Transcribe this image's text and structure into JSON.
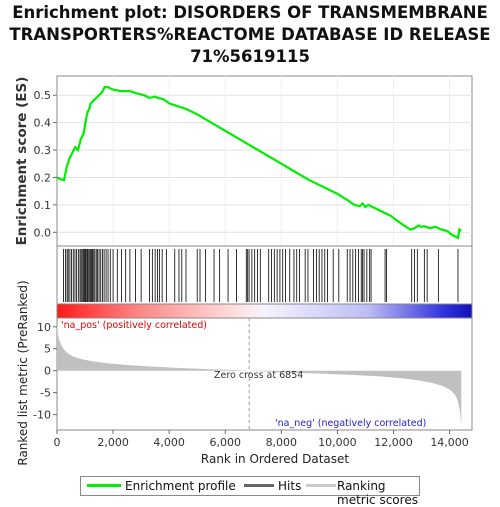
{
  "title": "Enrichment plot: DISORDERS OF TRANSMEMBRANE TRANSPORTERS%REACTOME DATABASE ID RELEASE 71%5619115",
  "title_lines": [
    "Enrichment plot: DISORDERS OF TRANSMEMBRANE",
    "TRANSPORTERS%REACTOME DATABASE ID RELEASE",
    "71%5619115"
  ],
  "colors": {
    "es_line": "#00ee00",
    "hits": "#000000",
    "metric": "#c0c0c0",
    "pos_label": "#dd0000",
    "neg_label": "#2222cc",
    "zero_cross": "#999999"
  },
  "chart_data": [
    {
      "type": "line",
      "name": "enrichment-profile",
      "ylabel": "Enrichment score (ES)",
      "xlim": [
        0,
        14800
      ],
      "ylim": [
        -0.05,
        0.57
      ],
      "yticks": [
        0.0,
        0.1,
        0.2,
        0.3,
        0.4,
        0.5
      ],
      "ytick_labels": [
        "0.0",
        "0.1",
        "0.2",
        "0.3",
        "0.4",
        "0.5"
      ],
      "grid": true,
      "series": [
        {
          "name": "Enrichment profile",
          "x": [
            0,
            100,
            250,
            350,
            450,
            550,
            650,
            750,
            850,
            950,
            1000,
            1050,
            1100,
            1150,
            1200,
            1300,
            1400,
            1500,
            1600,
            1700,
            1800,
            2000,
            2300,
            2600,
            2900,
            3100,
            3300,
            3500,
            3600,
            3800,
            4000,
            4300,
            4600,
            5000,
            5500,
            6000,
            6500,
            7000,
            7500,
            8000,
            8500,
            9000,
            9500,
            10000,
            10400,
            10600,
            10800,
            10900,
            11000,
            11100,
            11300,
            11500,
            11700,
            11900,
            12100,
            12300,
            12600,
            12750,
            12900,
            13000,
            13100,
            13300,
            13500,
            13700,
            13900,
            14100,
            14300,
            14350,
            14420
          ],
          "y": [
            0.2,
            0.195,
            0.19,
            0.24,
            0.27,
            0.29,
            0.31,
            0.3,
            0.34,
            0.36,
            0.39,
            0.42,
            0.44,
            0.45,
            0.47,
            0.48,
            0.49,
            0.5,
            0.51,
            0.53,
            0.53,
            0.52,
            0.515,
            0.515,
            0.505,
            0.5,
            0.49,
            0.495,
            0.49,
            0.485,
            0.47,
            0.46,
            0.45,
            0.43,
            0.4,
            0.37,
            0.34,
            0.31,
            0.28,
            0.25,
            0.22,
            0.19,
            0.165,
            0.14,
            0.115,
            0.1,
            0.095,
            0.105,
            0.092,
            0.1,
            0.09,
            0.08,
            0.07,
            0.06,
            0.045,
            0.03,
            0.01,
            0.015,
            0.025,
            0.02,
            0.022,
            0.015,
            0.02,
            0.01,
            0.005,
            -0.01,
            -0.02,
            0.01,
            0.005
          ]
        }
      ]
    },
    {
      "type": "scatter",
      "name": "hits",
      "xlim": [
        0,
        14800
      ],
      "x": [
        230,
        300,
        360,
        400,
        460,
        520,
        580,
        640,
        700,
        760,
        820,
        860,
        900,
        940,
        980,
        1010,
        1040,
        1080,
        1110,
        1150,
        1190,
        1230,
        1270,
        1310,
        1350,
        1400,
        1450,
        1500,
        1560,
        1620,
        1680,
        1750,
        1820,
        1900,
        2000,
        2150,
        2300,
        2450,
        2600,
        2800,
        3000,
        3300,
        3400,
        3500,
        3580,
        3650,
        3750,
        3900,
        4200,
        4350,
        4450,
        4600,
        5000,
        5100,
        5300,
        5600,
        5800,
        6100,
        6400,
        6750,
        6800,
        6850,
        6950,
        7050,
        7150,
        7250,
        7550,
        7650,
        7750,
        7850,
        7950,
        8050,
        8150,
        8300,
        8450,
        8550,
        8650,
        8850,
        8950,
        9150,
        9250,
        9350,
        9450,
        9550,
        9650,
        9850,
        10050,
        10350,
        10450,
        10550,
        10650,
        10750,
        10850,
        10900,
        10950,
        11050,
        11150,
        11200,
        11700,
        11750,
        12650,
        12750,
        12850,
        13100,
        13200,
        13600,
        14300
      ]
    },
    {
      "type": "area",
      "name": "ranked-list-metric",
      "ylabel": "Ranked list metric (PreRanked)",
      "xlabel": "Rank in Ordered Dataset",
      "xlim": [
        0,
        14800
      ],
      "ylim": [
        -13.5,
        12
      ],
      "xticks": [
        0,
        2000,
        4000,
        6000,
        8000,
        10000,
        12000,
        14000
      ],
      "xtick_labels": [
        "0",
        "2,000",
        "4,000",
        "6,000",
        "8,000",
        "10,000",
        "12,000",
        "14,000"
      ],
      "yticks": [
        -10,
        -5,
        0,
        5,
        10
      ],
      "ytick_labels": [
        "-10",
        "-5",
        "0",
        "5",
        "10"
      ],
      "x": [
        0,
        30,
        80,
        150,
        250,
        400,
        600,
        900,
        1300,
        1800,
        2500,
        3500,
        4500,
        5500,
        6300,
        6854,
        7500,
        8500,
        9500,
        10500,
        11500,
        12300,
        12900,
        13400,
        13800,
        14050,
        14200,
        14300,
        14380,
        14420
      ],
      "y": [
        10.5,
        8.5,
        7.0,
        5.8,
        4.8,
        3.9,
        3.2,
        2.6,
        2.1,
        1.7,
        1.3,
        0.9,
        0.6,
        0.35,
        0.15,
        0.0,
        -0.2,
        -0.45,
        -0.7,
        -0.95,
        -1.3,
        -1.7,
        -2.2,
        -2.8,
        -3.6,
        -4.5,
        -5.5,
        -7.0,
        -9.5,
        -12.5
      ],
      "zero_cross_x": 6854
    }
  ],
  "annotations": {
    "pos_label": "'na_pos' (positively correlated)",
    "neg_label": "'na_neg' (negatively correlated)",
    "zero_cross": "Zero cross at 6854"
  },
  "legend": {
    "items": [
      {
        "label": "Enrichment profile",
        "color": "#00ee00"
      },
      {
        "label": "Hits",
        "color": "#666666"
      },
      {
        "label": "Ranking metric scores",
        "color": "#cccccc"
      }
    ]
  }
}
